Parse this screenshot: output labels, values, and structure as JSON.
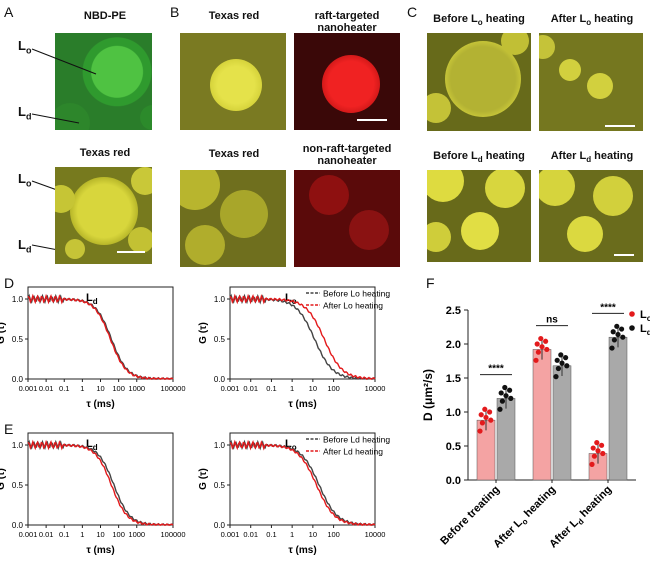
{
  "panels": {
    "A": {
      "letter": "A",
      "titles": [
        "NBD-PE",
        "Texas red"
      ],
      "lo": "L",
      "lo_sub": "o",
      "ld": "L",
      "ld_sub": "d"
    },
    "B": {
      "letter": "B",
      "titles": [
        "Texas red",
        "raft-targeted nanoheater",
        "Texas red",
        "non-raft-targeted nanoheater"
      ]
    },
    "C": {
      "letter": "C",
      "titles": [
        "Before L",
        "o",
        " heating",
        "After L",
        "o",
        " heating",
        "Before L",
        "d",
        " heating",
        "After L",
        "d",
        " heating"
      ]
    },
    "D": {
      "letter": "D"
    },
    "E": {
      "letter": "E"
    },
    "F": {
      "letter": "F"
    }
  },
  "colors": {
    "lo_fit": "#e31a1c",
    "ld_fit": "#555555",
    "lo_bar": "#f4a3a3",
    "ld_bar": "#a9a9a9",
    "fluor_green": "#3fae3a",
    "fluor_yellow": "#d8d820",
    "fluor_red": "#d81818"
  },
  "chart_data": [
    {
      "panel": "D-left",
      "type": "line",
      "title": "Ld",
      "xlabel": "τ (ms)",
      "ylabel": "G (τ)",
      "x_scale": "log",
      "xticks": [
        "0.001",
        "0.01",
        "0.1",
        "1",
        "10",
        "100",
        "1000",
        "100000"
      ],
      "yticks": [
        "0.0",
        "0.5",
        "1.0"
      ],
      "ylim": [
        0,
        1.15
      ],
      "series": [
        {
          "name": "Before",
          "tau_half": 40,
          "color": "#444444"
        },
        {
          "name": "After",
          "tau_half": 35,
          "color": "#e31a1c"
        }
      ]
    },
    {
      "panel": "D-right",
      "type": "line",
      "title": "Lo",
      "xlabel": "τ (ms)",
      "ylabel": "G (τ)",
      "x_scale": "log",
      "xticks": [
        "0.001",
        "0.01",
        "0.1",
        "1",
        "10",
        "100",
        "10000"
      ],
      "yticks": [
        "0.0",
        "0.5",
        "1.0"
      ],
      "ylim": [
        0,
        1.15
      ],
      "legend": [
        "Before Lo heating",
        "After Lo heating"
      ],
      "series": [
        {
          "name": "Before Lo heating",
          "tau_half": 12,
          "color": "#444444"
        },
        {
          "name": "After Lo heating",
          "tau_half": 35,
          "color": "#e31a1c"
        }
      ]
    },
    {
      "panel": "E-left",
      "type": "line",
      "title": "Ld",
      "xlabel": "τ (ms)",
      "ylabel": "G (τ)",
      "x_scale": "log",
      "xticks": [
        "0.001",
        "0.01",
        "0.1",
        "1",
        "10",
        "100",
        "1000",
        "100000"
      ],
      "yticks": [
        "0.0",
        "0.5",
        "1.0"
      ],
      "ylim": [
        0,
        1.15
      ],
      "series": [
        {
          "name": "Before",
          "tau_half": 55,
          "color": "#444444"
        },
        {
          "name": "After",
          "tau_half": 40,
          "color": "#e31a1c"
        }
      ]
    },
    {
      "panel": "E-right",
      "type": "line",
      "title": "Lo",
      "xlabel": "τ (ms)",
      "ylabel": "G (τ)",
      "x_scale": "log",
      "xticks": [
        "0.001",
        "0.01",
        "0.1",
        "1",
        "10",
        "100",
        "10000"
      ],
      "yticks": [
        "0.0",
        "0.5",
        "1.0"
      ],
      "ylim": [
        0,
        1.15
      ],
      "legend": [
        "Before Ld heating",
        "After Ld heating"
      ],
      "series": [
        {
          "name": "Before Ld heating",
          "tau_half": 20,
          "color": "#444444"
        },
        {
          "name": "After Ld heating",
          "tau_half": 15,
          "color": "#e31a1c"
        }
      ]
    },
    {
      "panel": "F",
      "type": "bar",
      "ylabel": "D (μm²/s)",
      "yticks": [
        "0.0",
        "0.5",
        "1.0",
        "1.5",
        "2.0",
        "2.5"
      ],
      "ylim": [
        0,
        2.5
      ],
      "categories": [
        "Before treating",
        "After Lo heating",
        "After Ld heating"
      ],
      "series": [
        {
          "name": "Lo",
          "values": [
            0.88,
            1.92,
            0.39
          ]
        },
        {
          "name": "Ld",
          "values": [
            1.2,
            1.68,
            2.1
          ]
        }
      ],
      "significance": [
        "****",
        "ns",
        "****"
      ],
      "legend": [
        "Lo",
        "Ld"
      ]
    }
  ]
}
